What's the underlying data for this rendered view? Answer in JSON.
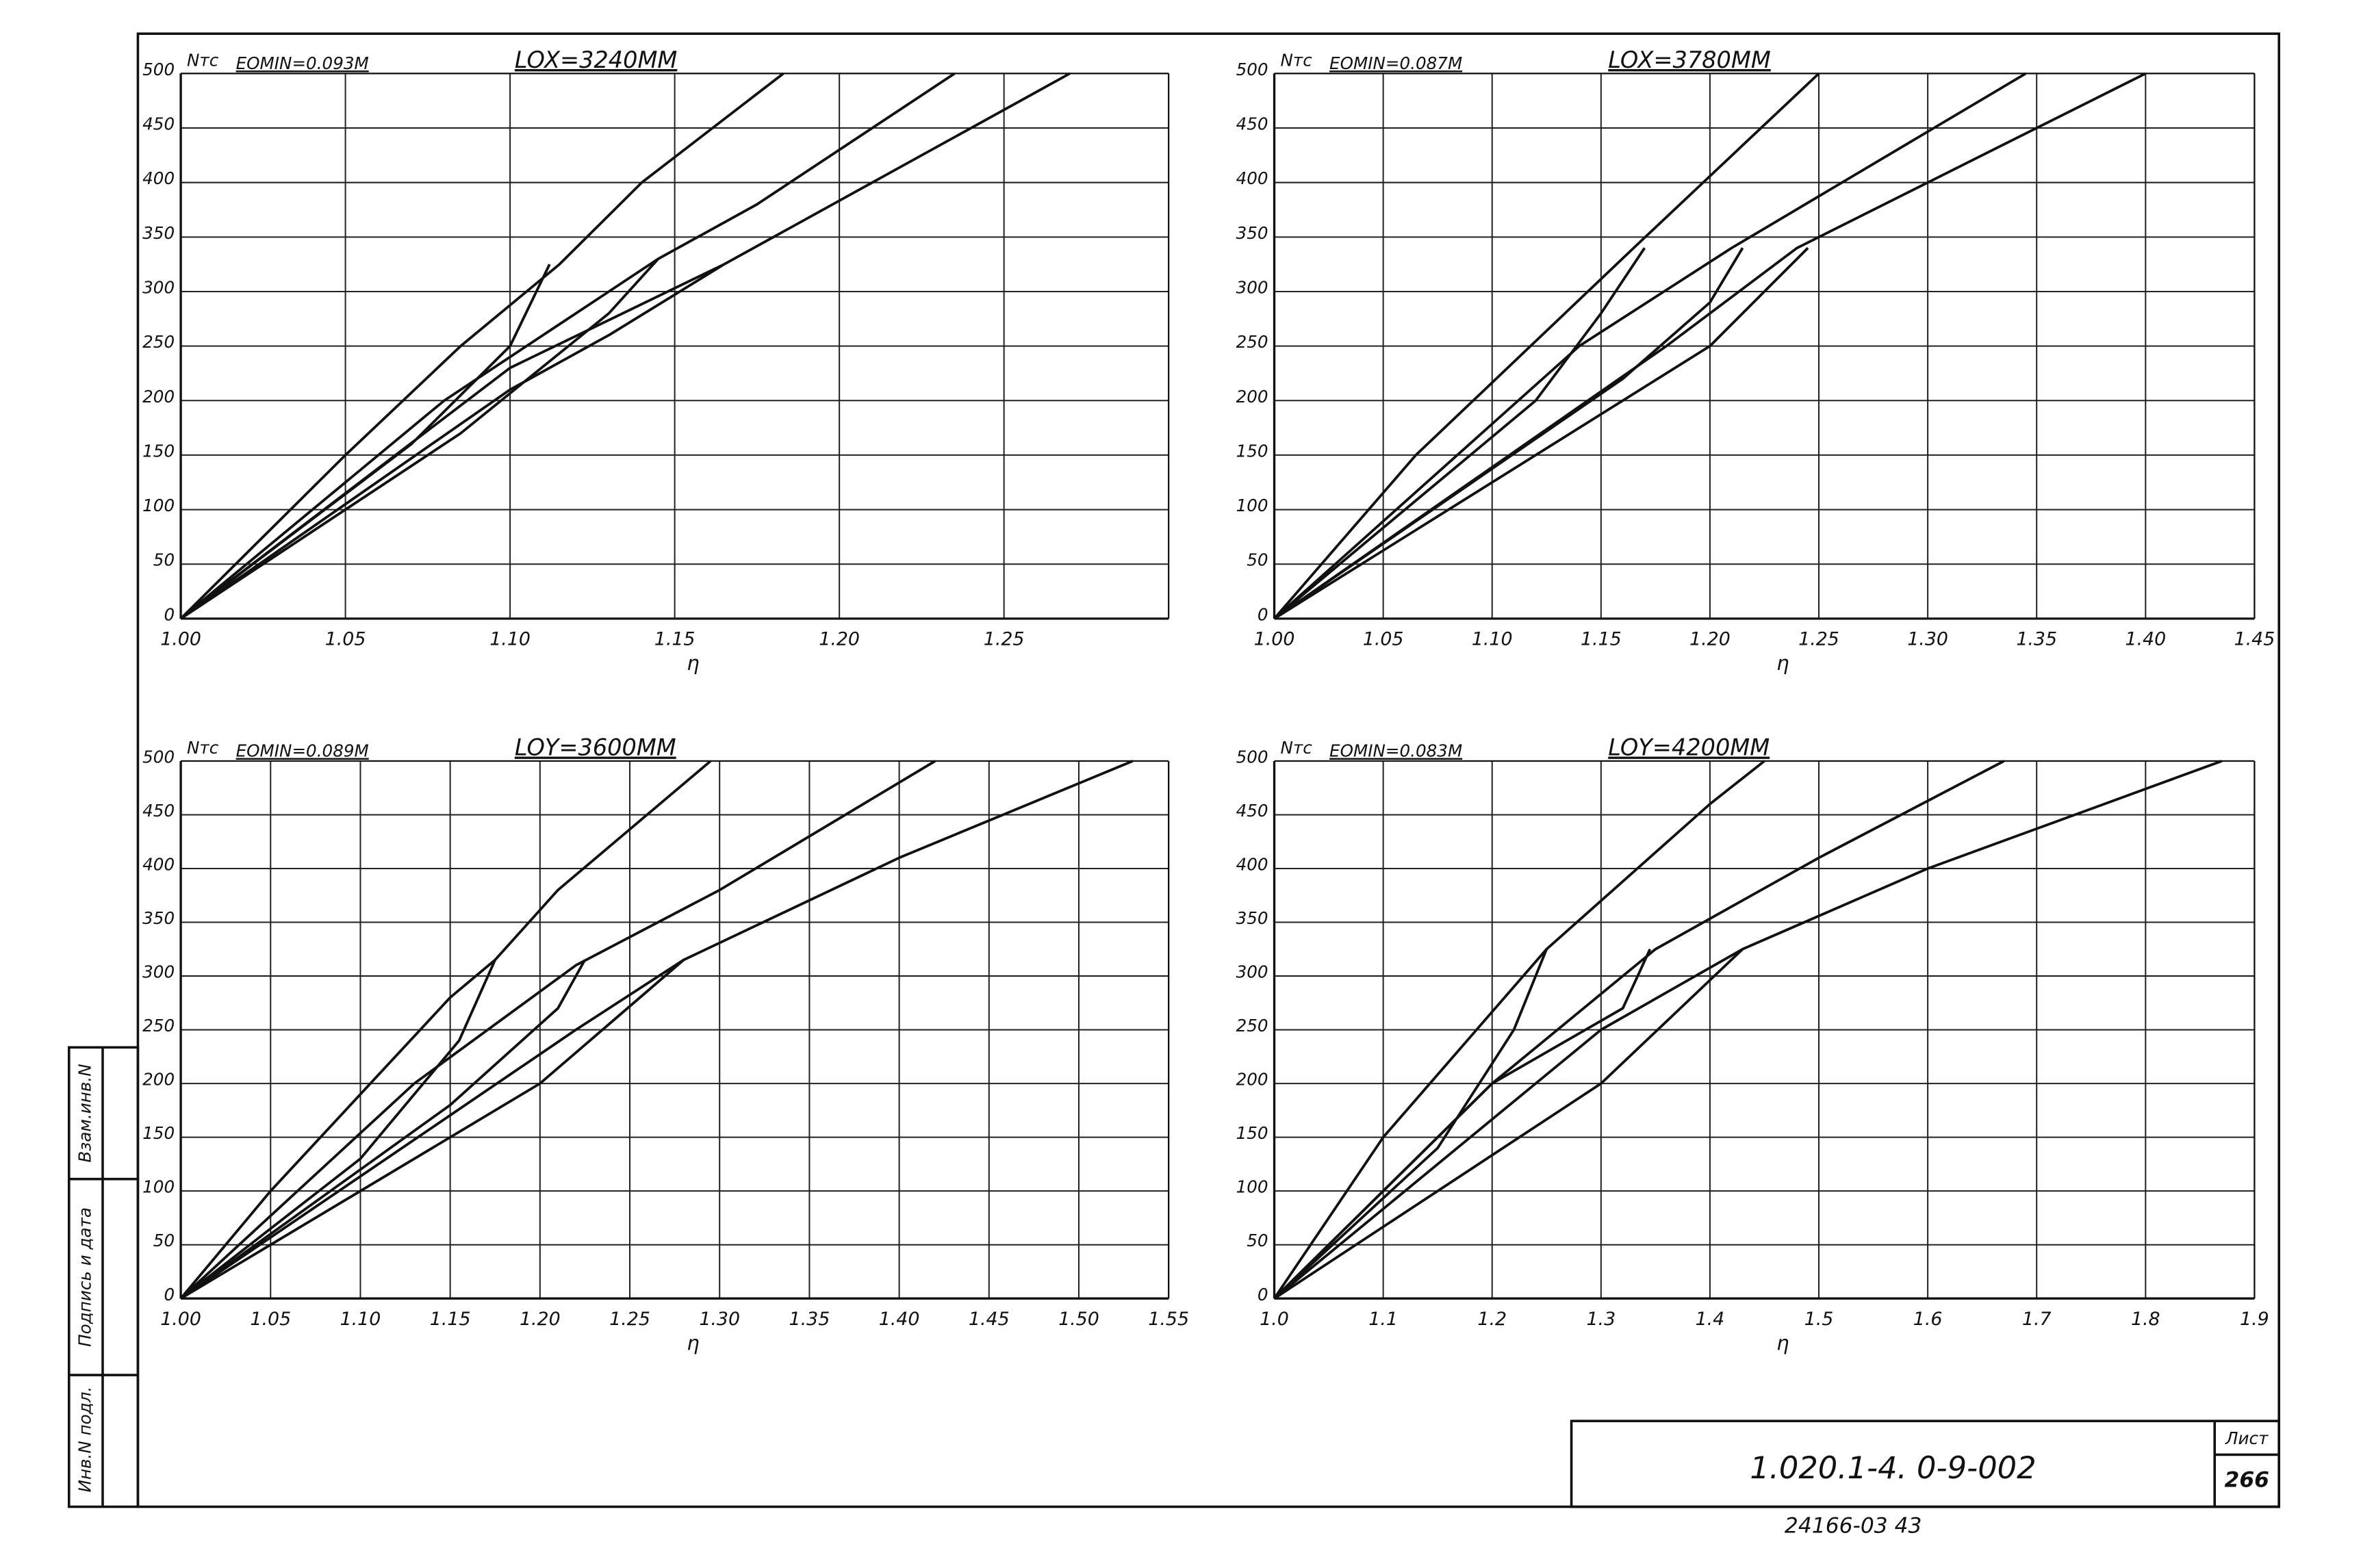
{
  "chart_data": [
    {
      "type": "line",
      "title": "EOMIN=0.093M",
      "subtitle": "LOX=3240MM",
      "y_label": "Nтс",
      "x_label": "η",
      "xlim": [
        1.0,
        1.3
      ],
      "ylim": [
        0,
        500
      ],
      "grid": true,
      "color": "#111",
      "xticks": [
        {
          "value": 1.0,
          "label": "1.00"
        },
        1.05,
        {
          "value": 1.1,
          "label": "1.10"
        },
        1.15,
        {
          "value": 1.2,
          "label": "1.20"
        },
        1.25
      ],
      "yticks": [
        0,
        50,
        100,
        150,
        200,
        250,
        300,
        350,
        400,
        450,
        500
      ],
      "series": [
        {
          "x": [
            1.0,
            1.05,
            1.085,
            1.115,
            1.14,
            1.183
          ],
          "values": [
            0,
            150,
            250,
            325,
            400,
            500
          ]
        },
        {
          "x": [
            1.0,
            1.08,
            1.115,
            1.145,
            1.175,
            1.235
          ],
          "values": [
            0,
            200,
            270,
            330,
            380,
            500
          ]
        },
        {
          "x": [
            1.0,
            1.1,
            1.13,
            1.165,
            1.21,
            1.27
          ],
          "values": [
            0,
            210,
            260,
            325,
            400,
            500
          ]
        },
        {
          "x": [
            1.0,
            1.07,
            1.1,
            1.112
          ],
          "values": [
            0,
            160,
            250,
            325
          ]
        },
        {
          "x": [
            1.0,
            1.085,
            1.13,
            1.145
          ],
          "values": [
            0,
            170,
            280,
            330
          ]
        },
        {
          "x": [
            1.0,
            1.1,
            1.165
          ],
          "values": [
            0,
            230,
            325
          ]
        }
      ]
    },
    {
      "type": "line",
      "title": "EOMIN=0.087M",
      "subtitle": "LOX=3780MM",
      "y_label": "Nтс",
      "x_label": "η",
      "xlim": [
        1.0,
        1.45
      ],
      "ylim": [
        0,
        500
      ],
      "grid": true,
      "color": "#111",
      "xticks": [
        {
          "value": 1.0,
          "label": "1.00"
        },
        1.05,
        {
          "value": 1.1,
          "label": "1.10"
        },
        1.15,
        {
          "value": 1.2,
          "label": "1.20"
        },
        1.25,
        {
          "value": 1.3,
          "label": "1.30"
        },
        1.35,
        {
          "value": 1.4,
          "label": "1.40"
        },
        1.45
      ],
      "yticks": [
        0,
        50,
        100,
        150,
        200,
        250,
        300,
        350,
        400,
        450,
        500
      ],
      "series": [
        {
          "x": [
            1.0,
            1.065,
            1.165,
            1.25
          ],
          "values": [
            0,
            150,
            340,
            500
          ]
        },
        {
          "x": [
            1.0,
            1.14,
            1.21,
            1.345
          ],
          "values": [
            0,
            250,
            340,
            500
          ]
        },
        {
          "x": [
            1.0,
            1.18,
            1.24,
            1.4
          ],
          "values": [
            0,
            250,
            340,
            500
          ]
        },
        {
          "x": [
            1.0,
            1.12,
            1.15,
            1.17
          ],
          "values": [
            0,
            200,
            280,
            340
          ]
        },
        {
          "x": [
            1.0,
            1.16,
            1.2,
            1.215
          ],
          "values": [
            0,
            220,
            290,
            340
          ]
        },
        {
          "x": [
            1.0,
            1.2,
            1.245
          ],
          "values": [
            0,
            250,
            340
          ]
        }
      ]
    },
    {
      "type": "line",
      "title": "EOMIN=0.089M",
      "subtitle": "LOY=3600MM",
      "y_label": "Nтс",
      "x_label": "η",
      "xlim": [
        1.0,
        1.55
      ],
      "ylim": [
        0,
        500
      ],
      "grid": true,
      "color": "#111",
      "xticks": [
        {
          "value": 1.0,
          "label": "1.00"
        },
        1.05,
        {
          "value": 1.1,
          "label": "1.10"
        },
        1.15,
        {
          "value": 1.2,
          "label": "1.20"
        },
        1.25,
        {
          "value": 1.3,
          "label": "1.30"
        },
        1.35,
        {
          "value": 1.4,
          "label": "1.40"
        },
        1.45,
        {
          "value": 1.5,
          "label": "1.50"
        },
        1.55
      ],
      "yticks": [
        0,
        50,
        100,
        150,
        200,
        250,
        300,
        350,
        400,
        450,
        500
      ],
      "series": [
        {
          "x": [
            1.0,
            1.05,
            1.15,
            1.175,
            1.21,
            1.295
          ],
          "values": [
            0,
            100,
            280,
            315,
            380,
            500
          ]
        },
        {
          "x": [
            1.0,
            1.13,
            1.22,
            1.3,
            1.42
          ],
          "values": [
            0,
            200,
            310,
            380,
            500
          ]
        },
        {
          "x": [
            1.0,
            1.2,
            1.28,
            1.4,
            1.53
          ],
          "values": [
            0,
            200,
            315,
            410,
            500
          ]
        },
        {
          "x": [
            1.0,
            1.1,
            1.155,
            1.175
          ],
          "values": [
            0,
            130,
            240,
            315
          ]
        },
        {
          "x": [
            1.0,
            1.15,
            1.21,
            1.225
          ],
          "values": [
            0,
            180,
            270,
            315
          ]
        },
        {
          "x": [
            1.0,
            1.22,
            1.28
          ],
          "values": [
            0,
            250,
            315
          ]
        }
      ]
    },
    {
      "type": "line",
      "title": "EOMIN=0.083M",
      "subtitle": "LOY=4200MM",
      "y_label": "Nтс",
      "x_label": "η",
      "xlim": [
        1.0,
        1.9
      ],
      "ylim": [
        0,
        500
      ],
      "grid": true,
      "color": "#111",
      "xticks": [
        {
          "value": 1.0,
          "label": "1.0"
        },
        1.1,
        1.2,
        1.3,
        1.4,
        1.5,
        1.6,
        1.7,
        1.8,
        1.9
      ],
      "yticks": [
        0,
        50,
        100,
        150,
        200,
        250,
        300,
        350,
        400,
        450,
        500
      ],
      "series": [
        {
          "x": [
            1.0,
            1.1,
            1.25,
            1.4,
            1.45
          ],
          "values": [
            0,
            150,
            325,
            460,
            500
          ]
        },
        {
          "x": [
            1.0,
            1.2,
            1.35,
            1.5,
            1.67
          ],
          "values": [
            0,
            200,
            325,
            410,
            500
          ]
        },
        {
          "x": [
            1.0,
            1.3,
            1.43,
            1.6,
            1.87
          ],
          "values": [
            0,
            200,
            325,
            400,
            500
          ]
        },
        {
          "x": [
            1.0,
            1.15,
            1.22,
            1.25
          ],
          "values": [
            0,
            140,
            250,
            325
          ]
        },
        {
          "x": [
            1.0,
            1.2,
            1.32,
            1.345
          ],
          "values": [
            0,
            200,
            270,
            325
          ]
        },
        {
          "x": [
            1.0,
            1.3,
            1.43
          ],
          "values": [
            0,
            250,
            325
          ]
        }
      ]
    }
  ],
  "sheet": {
    "code": "1.020.1-4. 0-9-002",
    "sheet_label": "Лист",
    "sheet_number": "266",
    "archive": "24166-03 43",
    "stamps": [
      "Инв.N подл.",
      "Подпись и дата",
      "Взам.инв.N"
    ]
  }
}
